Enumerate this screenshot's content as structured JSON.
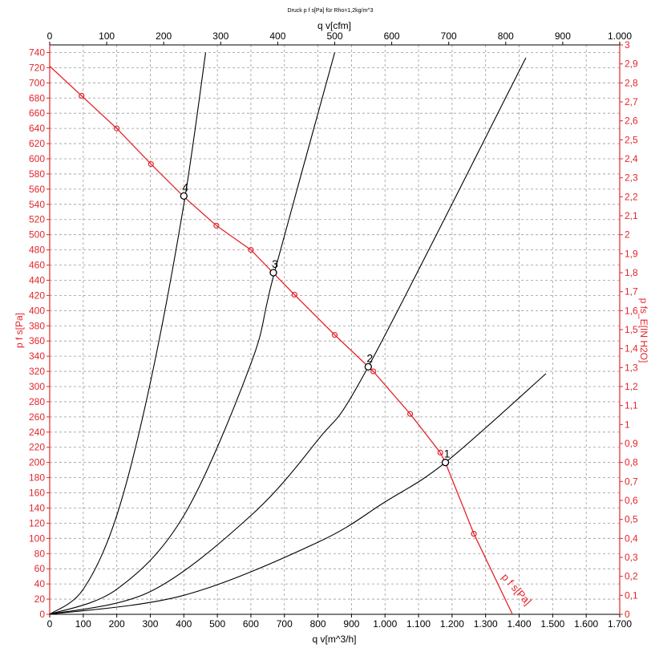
{
  "chart_data": {
    "type": "line",
    "title": "Druck p f s[Pa] für Rho=1,2kg/m^3",
    "xlabel": "q v[m^3/h]",
    "x2label": "q v[cfm]",
    "ylabel": "p f s[Pa]",
    "y2label": "p fs_E[IN H2O]",
    "xlim": [
      0,
      1700
    ],
    "x2lim": [
      0,
      1000
    ],
    "ylim": [
      0,
      750
    ],
    "y2lim": [
      0,
      3
    ],
    "x_ticks": [
      "0",
      "100",
      "200",
      "300",
      "400",
      "500",
      "600",
      "700",
      "800",
      "900",
      "1.000",
      "1.100",
      "1.200",
      "1.300",
      "1.400",
      "1.500",
      "1.600",
      "1.700"
    ],
    "x2_ticks": [
      "0",
      "100",
      "200",
      "300",
      "400",
      "500",
      "600",
      "700",
      "800",
      "900",
      "1.000"
    ],
    "y_ticks": [
      "0",
      "20",
      "40",
      "60",
      "80",
      "100",
      "120",
      "140",
      "160",
      "180",
      "200",
      "220",
      "240",
      "260",
      "280",
      "300",
      "320",
      "340",
      "360",
      "380",
      "400",
      "420",
      "440",
      "460",
      "480",
      "500",
      "520",
      "540",
      "560",
      "580",
      "600",
      "620",
      "640",
      "660",
      "680",
      "700",
      "720",
      "740"
    ],
    "y2_ticks": [
      "0",
      "0,1",
      "0,2",
      "0,3",
      "0,4",
      "0,5",
      "0,6",
      "0,7",
      "0,8",
      "0,9",
      "1",
      "1,1",
      "1,2",
      "1,3",
      "1,4",
      "1,5",
      "1,6",
      "1,7",
      "1,8",
      "1,9",
      "2",
      "2,1",
      "2,2",
      "2,3",
      "2,4",
      "2,5",
      "2,6",
      "2,7",
      "2,8",
      "2,9",
      "3"
    ],
    "grid": true,
    "series": [
      {
        "name": "p f s[Pa]",
        "color": "#e3262b",
        "x": [
          0,
          95,
          200,
          302,
          400,
          497,
          600,
          730,
          850,
          965,
          1075,
          1165,
          1180,
          1265,
          1380
        ],
        "y": [
          722,
          683,
          640,
          593,
          550,
          512,
          480,
          421,
          368,
          320,
          264,
          213,
          200,
          106,
          0
        ],
        "markers": [
          {
            "x": 95,
            "y": 683
          },
          {
            "x": 200,
            "y": 640
          },
          {
            "x": 302,
            "y": 593
          },
          {
            "x": 497,
            "y": 512
          },
          {
            "x": 600,
            "y": 480
          },
          {
            "x": 730,
            "y": 421
          },
          {
            "x": 850,
            "y": 368
          },
          {
            "x": 965,
            "y": 320
          },
          {
            "x": 1075,
            "y": 264
          },
          {
            "x": 1165,
            "y": 213
          },
          {
            "x": 1265,
            "y": 106
          }
        ]
      }
    ],
    "system_curves": [
      {
        "color": "#000000",
        "x": [
          0,
          100,
          200,
          300,
          400,
          465
        ],
        "y": [
          0,
          33,
          130,
          305,
          540,
          740
        ]
      },
      {
        "color": "#000000",
        "x": [
          0,
          200,
          400,
          600,
          670,
          850
        ],
        "y": [
          0,
          33,
          130,
          330,
          450,
          740
        ]
      },
      {
        "color": "#000000",
        "x": [
          0,
          300,
          600,
          800,
          950,
          1420
        ],
        "y": [
          0,
          30,
          130,
          230,
          326,
          733
        ]
      },
      {
        "color": "#000000",
        "x": [
          0,
          400,
          800,
          1000,
          1180,
          1480
        ],
        "y": [
          0,
          25,
          95,
          148,
          200,
          317
        ]
      }
    ],
    "operating_points": [
      {
        "label": "1",
        "x": 1180,
        "y": 200
      },
      {
        "label": "2",
        "x": 950,
        "y": 326
      },
      {
        "label": "3",
        "x": 667,
        "y": 450
      },
      {
        "label": "4",
        "x": 400,
        "y": 551
      }
    ],
    "curve_label": "p f s[Pa]"
  }
}
